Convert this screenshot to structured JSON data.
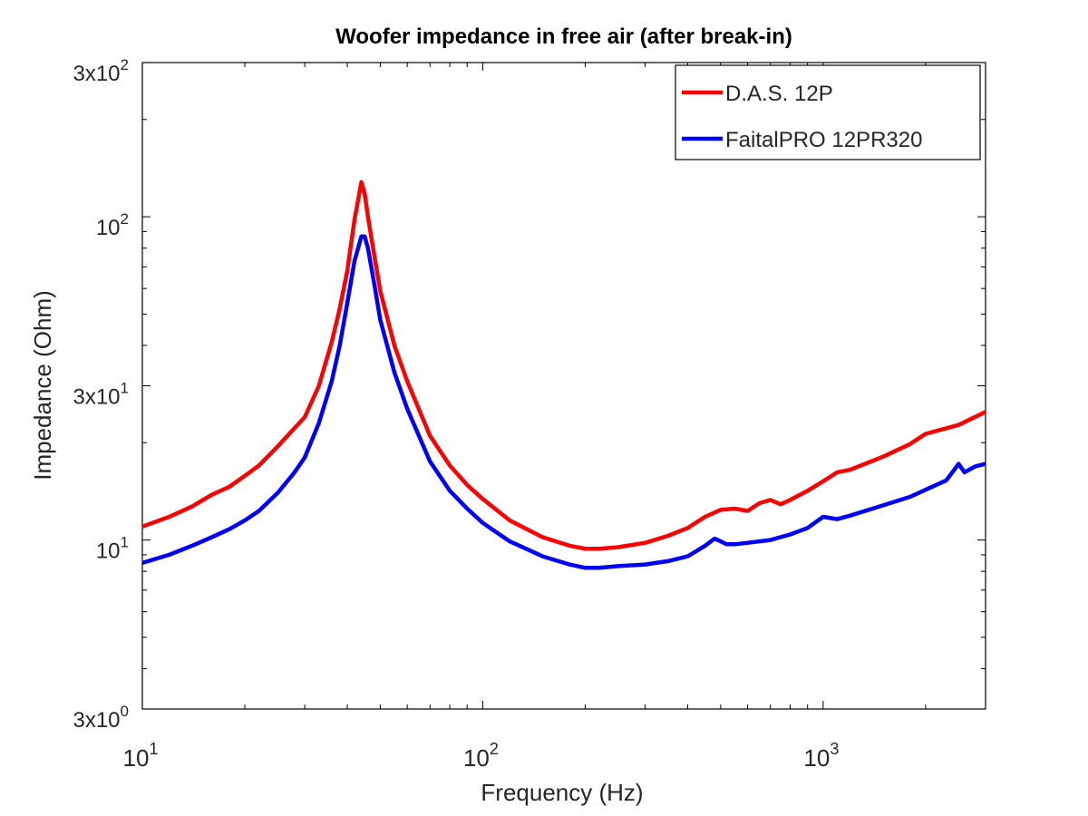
{
  "chart_data": {
    "type": "line",
    "title": "Woofer impedance in free air (after break-in)",
    "xlabel": "Frequency (Hz)",
    "ylabel": "Impedance (Ohm)",
    "xscale": "log",
    "yscale": "log",
    "xlim": [
      10,
      3000
    ],
    "ylim": [
      3,
      300
    ],
    "grid": false,
    "legend_position": "top-right",
    "x_ticks": [
      {
        "value": 10,
        "base": "10",
        "exp": "1"
      },
      {
        "value": 100,
        "base": "10",
        "exp": "2"
      },
      {
        "value": 1000,
        "base": "10",
        "exp": "3"
      }
    ],
    "y_ticks": [
      {
        "value": 3,
        "base": "3x10",
        "exp": "0"
      },
      {
        "value": 10,
        "base": "10",
        "exp": "1"
      },
      {
        "value": 30,
        "base": "3x10",
        "exp": "1"
      },
      {
        "value": 100,
        "base": "10",
        "exp": "2"
      },
      {
        "value": 300,
        "base": "3x10",
        "exp": "2"
      }
    ],
    "series": [
      {
        "name": "D.A.S. 12P",
        "color": "#ff0000",
        "x": [
          10,
          12,
          14,
          16,
          18,
          20,
          22,
          25,
          28,
          30,
          33,
          36,
          38,
          40,
          42,
          43,
          44,
          45,
          46,
          48,
          50,
          55,
          60,
          70,
          80,
          90,
          100,
          120,
          150,
          180,
          200,
          220,
          250,
          300,
          350,
          400,
          450,
          500,
          550,
          600,
          650,
          700,
          750,
          800,
          900,
          1000,
          1100,
          1200,
          1500,
          1800,
          2000,
          2500,
          3000
        ],
        "y": [
          11.0,
          11.8,
          12.7,
          13.8,
          14.6,
          15.8,
          17.0,
          19.5,
          22.2,
          24.0,
          30.0,
          41.0,
          52.0,
          68.0,
          98.0,
          112.0,
          128.0,
          118.0,
          100.0,
          76.0,
          59.0,
          40.0,
          31.0,
          21.0,
          17.0,
          14.8,
          13.4,
          11.5,
          10.2,
          9.6,
          9.4,
          9.4,
          9.5,
          9.8,
          10.3,
          10.9,
          11.8,
          12.4,
          12.5,
          12.3,
          13.0,
          13.3,
          12.9,
          13.3,
          14.2,
          15.2,
          16.2,
          16.5,
          18.1,
          19.8,
          21.3,
          22.7,
          24.9
        ]
      },
      {
        "name": "FaitalPRO 12PR320",
        "color": "#0000ff",
        "x": [
          10,
          12,
          14,
          16,
          18,
          20,
          22,
          25,
          28,
          30,
          33,
          36,
          38,
          40,
          42,
          44,
          45,
          46,
          48,
          50,
          55,
          60,
          70,
          80,
          90,
          100,
          120,
          150,
          180,
          200,
          220,
          250,
          300,
          350,
          400,
          450,
          480,
          500,
          520,
          550,
          600,
          700,
          800,
          900,
          1000,
          1100,
          1200,
          1500,
          1800,
          2000,
          2300,
          2500,
          2600,
          2800,
          3000
        ],
        "y": [
          8.5,
          9.0,
          9.6,
          10.2,
          10.8,
          11.5,
          12.3,
          14.0,
          16.2,
          18.0,
          23.0,
          31.0,
          40.0,
          54.0,
          73.0,
          87.0,
          87.0,
          80.0,
          62.0,
          48.0,
          33.0,
          25.5,
          17.5,
          14.2,
          12.5,
          11.3,
          9.9,
          8.9,
          8.4,
          8.2,
          8.2,
          8.3,
          8.4,
          8.6,
          8.9,
          9.6,
          10.1,
          9.9,
          9.7,
          9.7,
          9.8,
          10.0,
          10.4,
          10.9,
          11.8,
          11.6,
          11.9,
          12.8,
          13.6,
          14.3,
          15.3,
          17.2,
          16.2,
          16.9,
          17.2
        ]
      }
    ]
  }
}
